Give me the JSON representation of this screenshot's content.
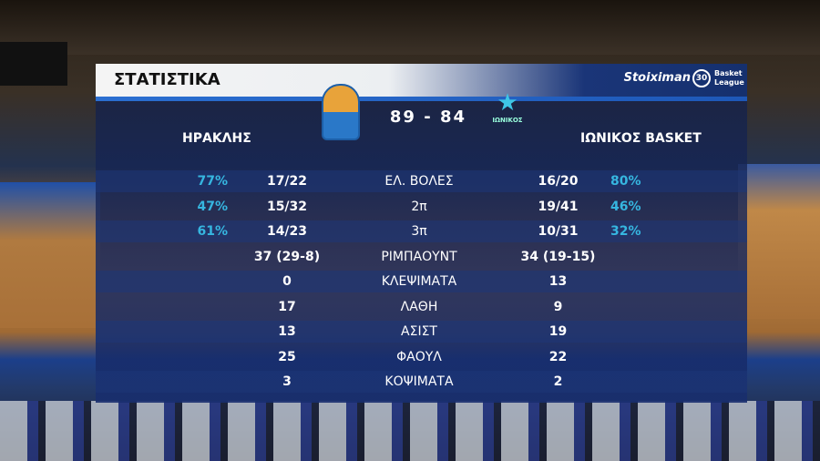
{
  "header": {
    "title": "ΣΤΑΤΙΣΤΙΚΑ",
    "sponsor": "Stoiximan",
    "league": "Basket League",
    "league_badge": "30"
  },
  "match": {
    "home": "ΗΡΑΚΛΗΣ",
    "away": "ΙΩΝΙΚΟΣ BASKET",
    "home_score": "89",
    "away_score": "84",
    "separator": "-",
    "away_logo_text": "ΙΩΝΙΚΟΣ"
  },
  "stats": [
    {
      "label": "ΕΛ. ΒΟΛΕΣ",
      "home_pct": "77%",
      "home": "17/22",
      "away": "16/20",
      "away_pct": "80%"
    },
    {
      "label": "2π",
      "home_pct": "47%",
      "home": "15/32",
      "away": "19/41",
      "away_pct": "46%"
    },
    {
      "label": "3π",
      "home_pct": "61%",
      "home": "14/23",
      "away": "10/31",
      "away_pct": "32%"
    },
    {
      "label": "ΡΙΜΠΑΟΥΝΤ",
      "home_pct": "",
      "home": "37 (29-8)",
      "away": "34 (19-15)",
      "away_pct": ""
    },
    {
      "label": "ΚΛΕΨΙΜΑΤΑ",
      "home_pct": "",
      "home": "0",
      "away": "13",
      "away_pct": ""
    },
    {
      "label": "ΛΑΘΗ",
      "home_pct": "",
      "home": "17",
      "away": "9",
      "away_pct": ""
    },
    {
      "label": "ΑΣΙΣΤ",
      "home_pct": "",
      "home": "13",
      "away": "19",
      "away_pct": ""
    },
    {
      "label": "ΦΑΟΥΛ",
      "home_pct": "",
      "home": "25",
      "away": "22",
      "away_pct": ""
    },
    {
      "label": "ΚΟΨΙΜΑΤΑ",
      "home_pct": "",
      "home": "3",
      "away": "2",
      "away_pct": ""
    }
  ],
  "colors": {
    "accent": "#36b6e0",
    "panel": "#162860"
  }
}
